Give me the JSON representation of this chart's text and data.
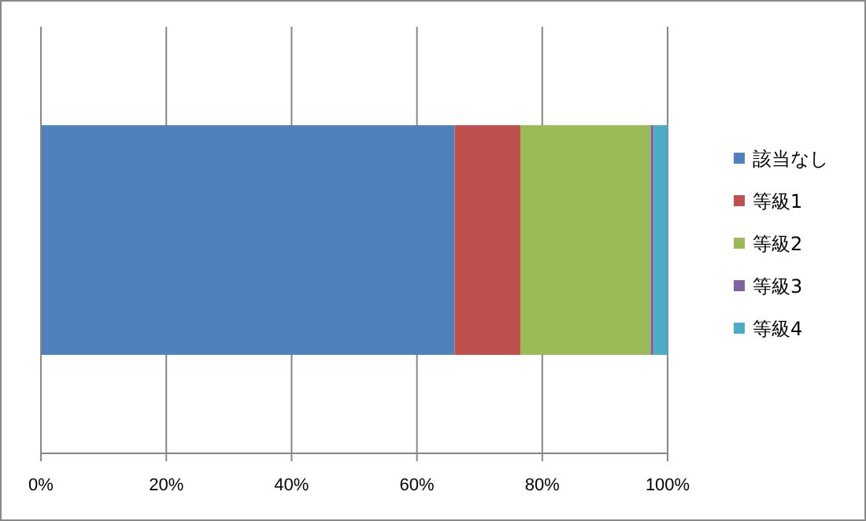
{
  "chart_data": {
    "type": "bar",
    "orientation": "horizontal",
    "stacked": true,
    "categories": [
      null
    ],
    "series": [
      {
        "name": "該当なし",
        "color": "#4f81bd",
        "values": [
          66.0
        ]
      },
      {
        "name": "等級1",
        "color": "#c0504d",
        "values": [
          10.5
        ]
      },
      {
        "name": "等級2",
        "color": "#9bbb59",
        "values": [
          20.8
        ]
      },
      {
        "name": "等級3",
        "color": "#8064a2",
        "values": [
          0.5
        ]
      },
      {
        "name": "等級4",
        "color": "#4bacc6",
        "values": [
          2.2
        ]
      }
    ],
    "xlim": [
      0,
      100
    ],
    "xticks": [
      {
        "value": 0,
        "label": "0%"
      },
      {
        "value": 20,
        "label": "20%"
      },
      {
        "value": 40,
        "label": "40%"
      },
      {
        "value": 60,
        "label": "60%"
      },
      {
        "value": 80,
        "label": "80%"
      },
      {
        "value": 100,
        "label": "100%"
      }
    ],
    "grid": "x",
    "legend": "right"
  }
}
